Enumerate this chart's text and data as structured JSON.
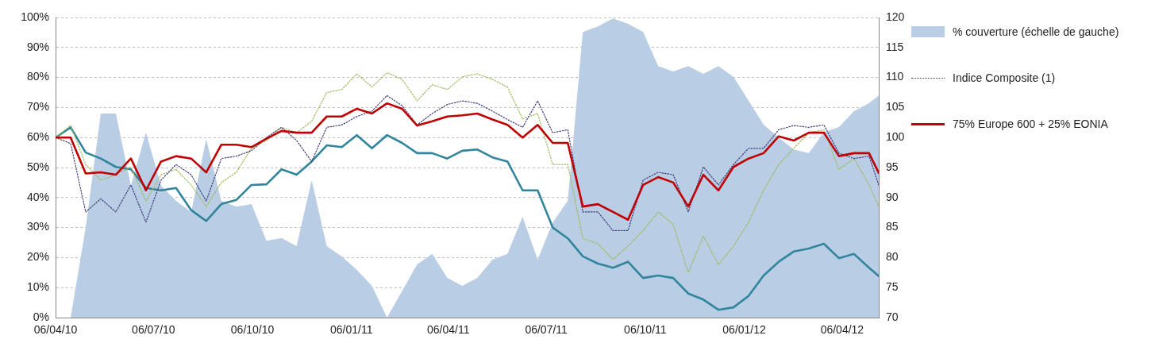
{
  "chart_data": {
    "type": "line",
    "legend": "right",
    "grid": "y",
    "marker": "none",
    "line_style": "solid",
    "x": [
      "2010-04-06",
      "2010-04-20",
      "2010-05-04",
      "2010-05-18",
      "2010-06-01",
      "2010-06-15",
      "2010-06-29",
      "2010-07-13",
      "2010-07-27",
      "2010-08-10",
      "2010-08-24",
      "2010-09-07",
      "2010-09-21",
      "2010-10-05",
      "2010-10-19",
      "2010-11-02",
      "2010-11-16",
      "2010-11-30",
      "2010-12-14",
      "2010-12-28",
      "2011-01-11",
      "2011-01-25",
      "2011-02-08",
      "2011-02-22",
      "2011-03-08",
      "2011-03-22",
      "2011-04-05",
      "2011-04-19",
      "2011-05-03",
      "2011-05-17",
      "2011-05-31",
      "2011-06-14",
      "2011-06-28",
      "2011-07-12",
      "2011-07-26",
      "2011-08-09",
      "2011-08-23",
      "2011-09-06",
      "2011-09-20",
      "2011-10-04",
      "2011-10-18",
      "2011-11-01",
      "2011-11-15",
      "2011-11-29",
      "2011-12-13",
      "2011-12-27",
      "2012-01-10",
      "2012-01-24",
      "2012-02-07",
      "2012-02-21",
      "2012-03-06",
      "2012-03-20",
      "2012-04-03",
      "2012-04-17",
      "2012-05-01",
      "2012-05-10"
    ],
    "xlim": [
      "2010-04-06",
      "2012-05-10"
    ],
    "xticks": [
      {
        "value": "2010-04-06",
        "label": "06/04/10"
      },
      {
        "value": "2010-07-06",
        "label": "06/07/10"
      },
      {
        "value": "2010-10-06",
        "label": "06/10/10"
      },
      {
        "value": "2011-01-06",
        "label": "06/01/11"
      },
      {
        "value": "2011-04-06",
        "label": "06/04/11"
      },
      {
        "value": "2011-07-06",
        "label": "06/07/11"
      },
      {
        "value": "2011-10-06",
        "label": "06/10/11"
      },
      {
        "value": "2012-01-06",
        "label": "06/01/12"
      },
      {
        "value": "2012-04-06",
        "label": "06/04/12"
      }
    ],
    "ylim": [
      0,
      100
    ],
    "yticks": [
      {
        "value": 0,
        "label": "0%"
      },
      {
        "value": 10,
        "label": "10%"
      },
      {
        "value": 20,
        "label": "20%"
      },
      {
        "value": 30,
        "label": "30%"
      },
      {
        "value": 40,
        "label": "40%"
      },
      {
        "value": 50,
        "label": "50%"
      },
      {
        "value": 60,
        "label": "60%"
      },
      {
        "value": 70,
        "label": "70%"
      },
      {
        "value": 80,
        "label": "80%"
      },
      {
        "value": 90,
        "label": "90%"
      },
      {
        "value": 100,
        "label": "100%"
      }
    ],
    "y2lim": [
      70,
      120
    ],
    "y2ticks": [
      70,
      75,
      80,
      85,
      90,
      95,
      100,
      105,
      110,
      115,
      120
    ],
    "series": [
      {
        "name": "% couverture (échelle de gauche)",
        "type": "area",
        "color": "#b9cde5",
        "values": [
          0,
          0,
          30,
          68,
          68,
          44,
          61.7,
          44,
          38.9,
          35.2,
          59.5,
          38.9,
          37,
          37.8,
          25.6,
          26.5,
          23.8,
          45.8,
          23.8,
          20.4,
          15.9,
          10.6,
          0,
          8.8,
          17.7,
          21.2,
          13.2,
          10.6,
          13.2,
          19.3,
          21.2,
          33.6,
          19.3,
          31.7,
          38.9,
          95.2,
          97,
          99.7,
          97.9,
          95.2,
          83.8,
          82,
          83.8,
          81.2,
          83.8,
          80.2,
          72.3,
          64.3,
          60,
          56,
          54.8,
          61.7,
          63.5,
          68.8,
          71.4,
          74
        ]
      },
      {
        "type": "line",
        "axis": "y2",
        "color": "#31859c",
        "values": [
          100,
          101.7,
          97.5,
          96.5,
          95.1,
          94.7,
          91.6,
          91.2,
          91.6,
          87.9,
          86.1,
          88.9,
          89.6,
          92.1,
          92.2,
          94.7,
          93.8,
          96,
          98.7,
          98.4,
          100.4,
          98.2,
          100.4,
          99.1,
          97.4,
          97.4,
          96.5,
          97.8,
          98,
          96.7,
          96,
          91.2,
          91.2,
          85,
          83.2,
          80.2,
          79,
          78.3,
          79.3,
          76.6,
          77,
          76.6,
          74,
          73,
          71.3,
          71.7,
          73.6,
          77,
          79.3,
          81,
          81.5,
          82.3,
          79.9,
          80.6,
          78.3,
          76.9
        ]
      },
      {
        "type": "line",
        "axis": "y2",
        "color": "#9bbb59",
        "line_style": "dotted",
        "values": [
          100,
          102,
          95.5,
          92.9,
          93.8,
          95.1,
          89.4,
          93.8,
          94.7,
          92.1,
          88.5,
          92.5,
          94.2,
          98.2,
          99.5,
          101.7,
          100.8,
          102.7,
          107.5,
          108,
          110.6,
          108.4,
          110.8,
          109.7,
          106.1,
          108.8,
          108,
          110.1,
          110.6,
          109.7,
          108.4,
          103.1,
          104,
          95.5,
          95.5,
          83.2,
          82.3,
          79.7,
          81.9,
          84.5,
          87.6,
          85.5,
          77.5,
          83.6,
          78.8,
          81.9,
          85.9,
          91.2,
          95.5,
          98.2,
          100.8,
          101.3,
          94.7,
          96.5,
          92.1,
          88.5
        ]
      },
      {
        "name": "Indice Composite (1)",
        "type": "line",
        "axis": "y2",
        "color": "#403c7a",
        "line_style": "dotted",
        "values": [
          100,
          99,
          87.6,
          89.8,
          87.6,
          92.1,
          85.9,
          92.9,
          95.5,
          93.8,
          89.4,
          96.5,
          96.9,
          97.8,
          100,
          101.7,
          99.5,
          96,
          101.7,
          102.1,
          103.5,
          104.4,
          107,
          105.3,
          102.1,
          104,
          105.5,
          106.1,
          105.7,
          104.4,
          103,
          101.7,
          106.1,
          100.8,
          101.3,
          87.6,
          87.6,
          84.5,
          84.5,
          92.9,
          94.2,
          93.8,
          87.6,
          95.1,
          92.1,
          95.5,
          98.2,
          98.2,
          101.3,
          102,
          101.7,
          102.1,
          97.4,
          96.5,
          96.9,
          92.1
        ]
      },
      {
        "name": "75% Europe 600 + 25% EONIA",
        "type": "line",
        "axis": "y2",
        "color": "#c00000",
        "values": [
          100,
          100,
          94,
          94.2,
          93.8,
          96.5,
          91.2,
          96,
          96.9,
          96.5,
          94.2,
          98.8,
          98.8,
          98.4,
          99.8,
          101.1,
          100.8,
          100.8,
          103.5,
          103.5,
          104.8,
          104,
          105.7,
          104.8,
          102,
          102.7,
          103.5,
          103.7,
          104,
          103,
          102.1,
          100,
          102.1,
          99.1,
          99.1,
          88.5,
          88.9,
          87.6,
          86.3,
          92.1,
          93.4,
          92.5,
          88.5,
          93.8,
          91.2,
          95.1,
          96.5,
          97.4,
          100.2,
          99.5,
          100.8,
          100.8,
          96.9,
          97.4,
          97.4,
          94.1
        ]
      }
    ]
  }
}
